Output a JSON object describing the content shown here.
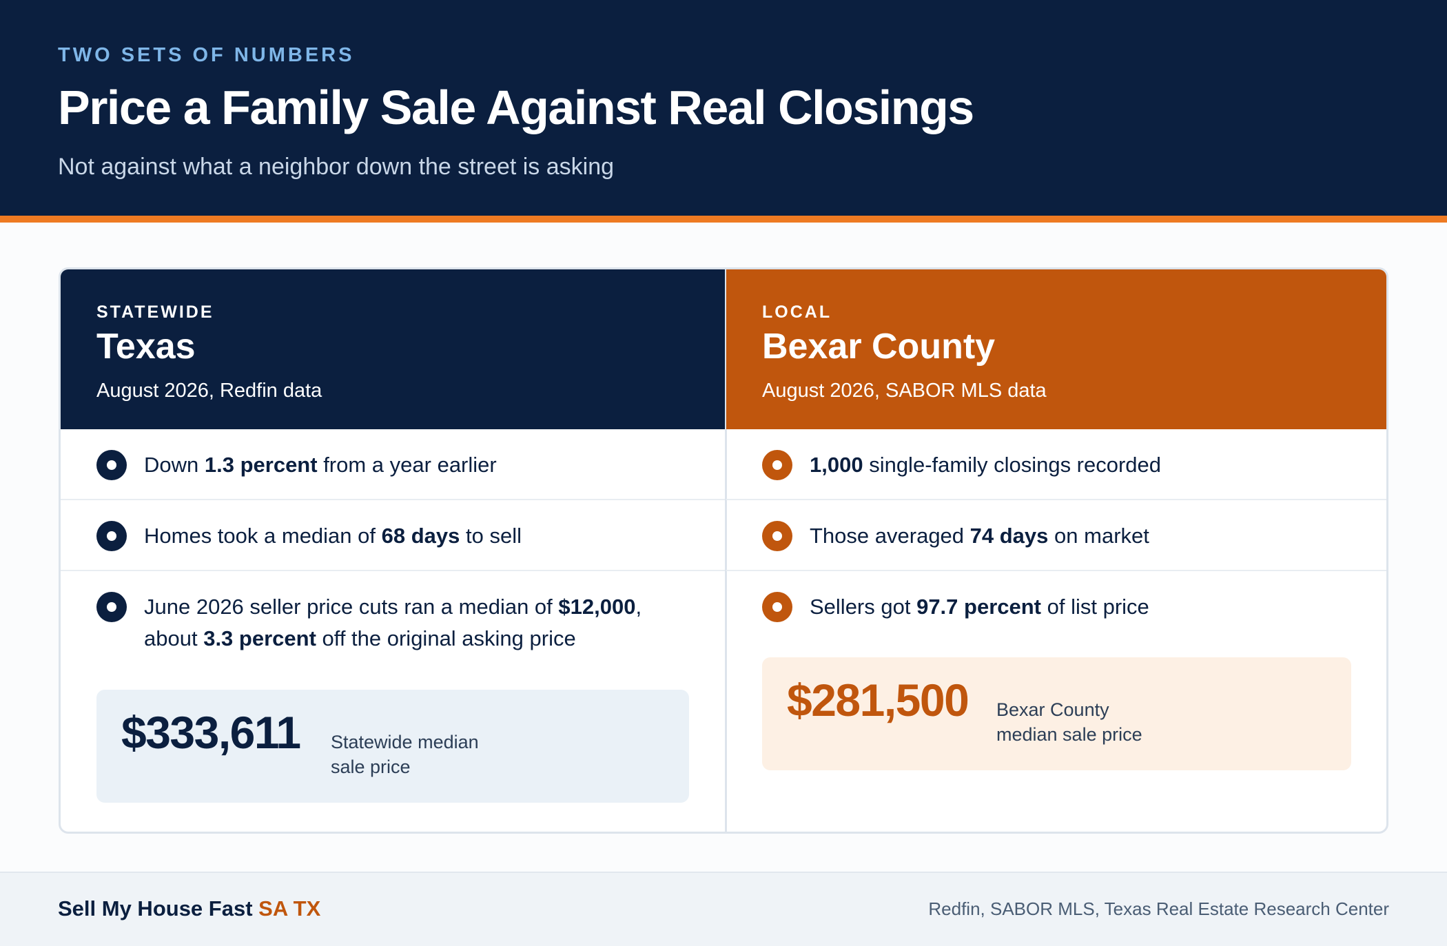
{
  "header": {
    "eyebrow": "TWO SETS OF NUMBERS",
    "title": "Price a Family Sale Against Real Closings",
    "subtitle": "Not against what a neighbor down the street is asking"
  },
  "statewide": {
    "kicker": "STATEWIDE",
    "region": "Texas",
    "source": "August 2026, Redfin data",
    "points": [
      {
        "pre": "Down ",
        "bold": "1.3 percent",
        "post": " from a year earlier"
      },
      {
        "pre": "Homes took a median of ",
        "bold": "68 days",
        "post": " to sell"
      },
      {
        "pre": "June 2026 seller price cuts ran a median of ",
        "bold": "$12,000",
        "post": ",",
        "pre2": "about ",
        "bold2": "3.3 percent",
        "post2": " off the original asking price"
      }
    ],
    "price_value": "$333,611",
    "price_label_1": "Statewide median",
    "price_label_2": "sale price"
  },
  "local": {
    "kicker": "LOCAL",
    "region": "Bexar County",
    "source": "August 2026, SABOR MLS data",
    "points": [
      {
        "pre": "",
        "bold": "1,000",
        "post": " single-family closings recorded"
      },
      {
        "pre": "Those averaged ",
        "bold": "74 days",
        "post": " on market"
      },
      {
        "pre": "Sellers got ",
        "bold": "97.7 percent",
        "post": " of list price"
      }
    ],
    "price_value": "$281,500",
    "price_label_1": "Bexar County",
    "price_label_2": "median sale price"
  },
  "footer": {
    "brand_main": "Sell My House Fast ",
    "brand_accent": "SA TX",
    "credits": "Redfin, SABOR MLS, Texas Real Estate Research Center"
  },
  "colors": {
    "navy": "#0b1f3f",
    "orange": "#c0560d",
    "accent_rule": "#ee7a22",
    "eyebrow_blue": "#7fb6e8"
  }
}
